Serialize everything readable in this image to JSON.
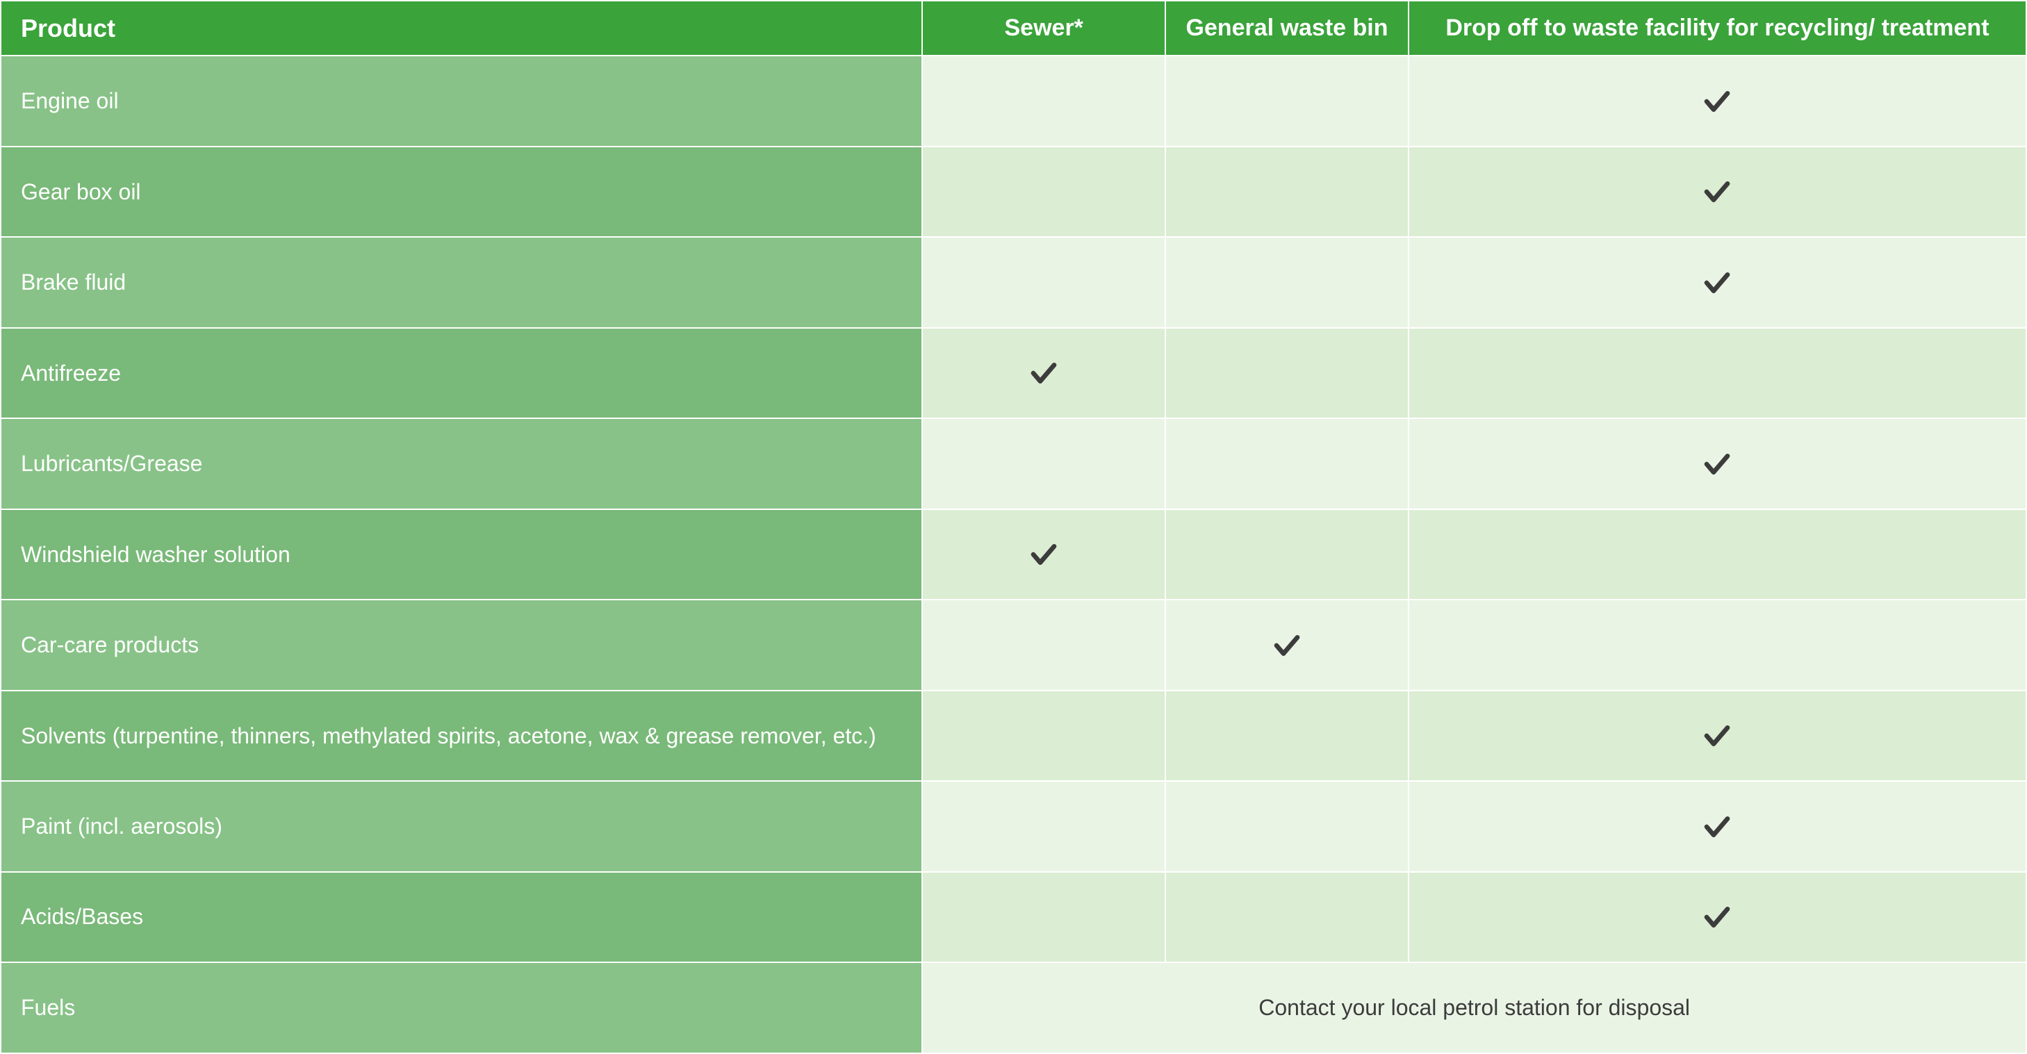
{
  "table": {
    "type": "table",
    "colors": {
      "header_bg": "#3aa33a",
      "product_odd_bg": "#88c288",
      "product_even_bg": "#79b979",
      "mark_odd_bg": "#eaf4e5",
      "mark_even_bg": "#dbedd2",
      "header_text": "#ffffff",
      "product_text": "#ffffff",
      "note_text": "#3c3c3c",
      "check_color": "#3c3c3c",
      "cell_border": "#ffffff"
    },
    "fonts": {
      "header_size_pt": 26,
      "body_size_pt": 24,
      "header_weight": 700,
      "body_weight": 400
    },
    "columns": [
      {
        "key": "product",
        "label": "Product",
        "width_pct": 45.5,
        "align": "left"
      },
      {
        "key": "sewer",
        "label": "Sewer*",
        "width_pct": 12.0,
        "align": "center"
      },
      {
        "key": "general",
        "label": "General waste bin",
        "width_pct": 12.0,
        "align": "center"
      },
      {
        "key": "facility",
        "label": "Drop off to waste facility for recycling/ treatment",
        "width_pct": 30.5,
        "align": "center"
      }
    ],
    "rows": [
      {
        "product": "Engine oil",
        "sewer": false,
        "general": false,
        "facility": true
      },
      {
        "product": "Gear box oil",
        "sewer": false,
        "general": false,
        "facility": true
      },
      {
        "product": "Brake fluid",
        "sewer": false,
        "general": false,
        "facility": true
      },
      {
        "product": "Antifreeze",
        "sewer": true,
        "general": false,
        "facility": false
      },
      {
        "product": "Lubricants/Grease",
        "sewer": false,
        "general": false,
        "facility": true
      },
      {
        "product": "Windshield washer solution",
        "sewer": true,
        "general": false,
        "facility": false
      },
      {
        "product": "Car-care products",
        "sewer": false,
        "general": true,
        "facility": false
      },
      {
        "product": "Solvents (turpentine, thinners, methylated spirits, acetone, wax & grease remover, etc.)",
        "sewer": false,
        "general": false,
        "facility": true
      },
      {
        "product": "Paint (incl. aerosols)",
        "sewer": false,
        "general": false,
        "facility": true
      },
      {
        "product": "Acids/Bases",
        "sewer": false,
        "general": false,
        "facility": true
      },
      {
        "product": "Fuels",
        "span_note": "Contact your local petrol station for disposal"
      }
    ]
  }
}
